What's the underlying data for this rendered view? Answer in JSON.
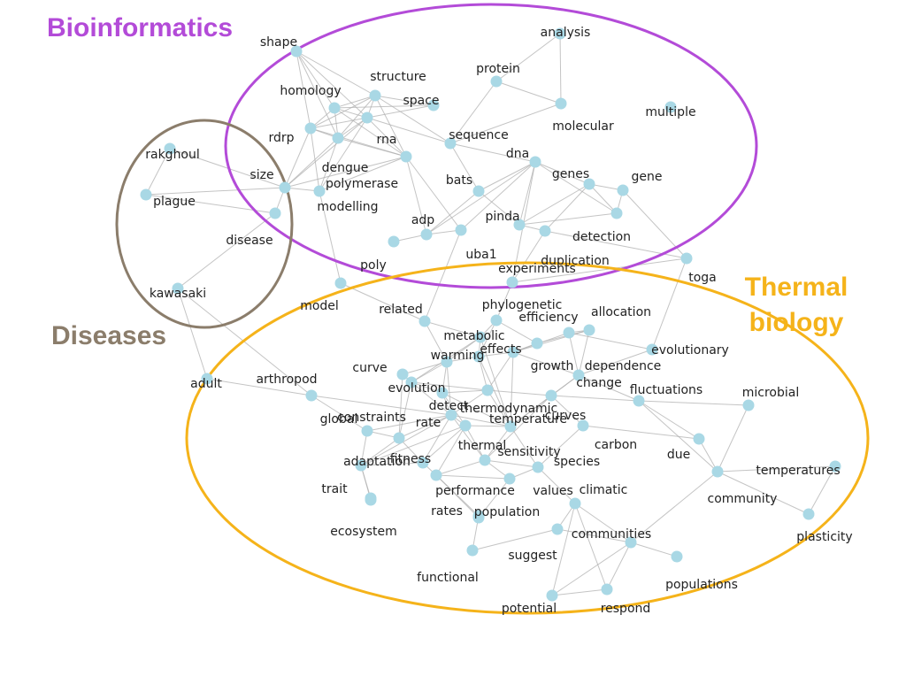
{
  "colors": {
    "node": "#a9d8e5",
    "edge": "#b0b0b0",
    "bioinformatics": "#b34bd8",
    "diseases": "#8b7d6b",
    "thermal_biology": "#f5b31a"
  },
  "clusters": [
    {
      "id": "bioinformatics",
      "label_lines": [
        "Bioinformatics"
      ],
      "color": "#b34bd8"
    },
    {
      "id": "diseases",
      "label_lines": [
        "Diseases"
      ],
      "color": "#8b7d6b"
    },
    {
      "id": "thermal_biology",
      "label_lines": [
        "Thermal",
        "biology"
      ],
      "color": "#f5b31a"
    }
  ],
  "nodes": [
    {
      "id": "shape",
      "label": "shape"
    },
    {
      "id": "analysis",
      "label": "analysis"
    },
    {
      "id": "protein",
      "label": "protein"
    },
    {
      "id": "structure",
      "label": "structure"
    },
    {
      "id": "homology",
      "label": "homology"
    },
    {
      "id": "space",
      "label": "space"
    },
    {
      "id": "multiple",
      "label": "multiple"
    },
    {
      "id": "molecular",
      "label": "molecular"
    },
    {
      "id": "rdrp",
      "label": "rdrp"
    },
    {
      "id": "rna",
      "label": "rna"
    },
    {
      "id": "sequence",
      "label": "sequence"
    },
    {
      "id": "dna",
      "label": "dna"
    },
    {
      "id": "dengue",
      "label": "dengue"
    },
    {
      "id": "rakghoul",
      "label": "rakghoul"
    },
    {
      "id": "size",
      "label": "size"
    },
    {
      "id": "polymerase",
      "label": "polymerase"
    },
    {
      "id": "bats",
      "label": "bats"
    },
    {
      "id": "genes",
      "label": "genes"
    },
    {
      "id": "gene",
      "label": "gene"
    },
    {
      "id": "plague",
      "label": "plague"
    },
    {
      "id": "modelling",
      "label": "modelling"
    },
    {
      "id": "pinda",
      "label": "pinda"
    },
    {
      "id": "adp",
      "label": "adp"
    },
    {
      "id": "disease",
      "label": "disease"
    },
    {
      "id": "detection",
      "label": "detection"
    },
    {
      "id": "uba1",
      "label": "uba1"
    },
    {
      "id": "duplication",
      "label": "duplication"
    },
    {
      "id": "poly",
      "label": "poly"
    },
    {
      "id": "experiments",
      "label": "experiments"
    },
    {
      "id": "toga",
      "label": "toga"
    },
    {
      "id": "kawasaki",
      "label": "kawasaki"
    },
    {
      "id": "phylogenetic",
      "label": "phylogenetic"
    },
    {
      "id": "model",
      "label": "model"
    },
    {
      "id": "related",
      "label": "related"
    },
    {
      "id": "efficiency",
      "label": "efficiency"
    },
    {
      "id": "allocation",
      "label": "allocation"
    },
    {
      "id": "metabolic",
      "label": "metabolic"
    },
    {
      "id": "effects",
      "label": "effects"
    },
    {
      "id": "warming",
      "label": "warming"
    },
    {
      "id": "evolutionary",
      "label": "evolutionary"
    },
    {
      "id": "curve",
      "label": "curve"
    },
    {
      "id": "growth",
      "label": "growth"
    },
    {
      "id": "dependence",
      "label": "dependence"
    },
    {
      "id": "adult",
      "label": "adult"
    },
    {
      "id": "arthropod",
      "label": "arthropod"
    },
    {
      "id": "evolution",
      "label": "evolution"
    },
    {
      "id": "change",
      "label": "change"
    },
    {
      "id": "fluctuations",
      "label": "fluctuations"
    },
    {
      "id": "detect",
      "label": "detect"
    },
    {
      "id": "microbial",
      "label": "microbial"
    },
    {
      "id": "thermodynamic",
      "label": "thermodynamic"
    },
    {
      "id": "global",
      "label": "global"
    },
    {
      "id": "constraints",
      "label": "constraints"
    },
    {
      "id": "rate",
      "label": "rate"
    },
    {
      "id": "temperature",
      "label": "temperature"
    },
    {
      "id": "curves",
      "label": "curves"
    },
    {
      "id": "carbon",
      "label": "carbon"
    },
    {
      "id": "thermal",
      "label": "thermal"
    },
    {
      "id": "sensitivity",
      "label": "sensitivity"
    },
    {
      "id": "due",
      "label": "due"
    },
    {
      "id": "fitness",
      "label": "fitness"
    },
    {
      "id": "adaptation",
      "label": "adaptation"
    },
    {
      "id": "species",
      "label": "species"
    },
    {
      "id": "temperatures",
      "label": "temperatures"
    },
    {
      "id": "trait",
      "label": "trait"
    },
    {
      "id": "performance",
      "label": "performance"
    },
    {
      "id": "values",
      "label": "values"
    },
    {
      "id": "climatic",
      "label": "climatic"
    },
    {
      "id": "community",
      "label": "community"
    },
    {
      "id": "rates",
      "label": "rates"
    },
    {
      "id": "population",
      "label": "population"
    },
    {
      "id": "ecosystem",
      "label": "ecosystem"
    },
    {
      "id": "communities",
      "label": "communities"
    },
    {
      "id": "plasticity",
      "label": "plasticity"
    },
    {
      "id": "suggest",
      "label": "suggest"
    },
    {
      "id": "populations",
      "label": "populations"
    },
    {
      "id": "functional",
      "label": "functional"
    },
    {
      "id": "potential",
      "label": "potential"
    },
    {
      "id": "respond",
      "label": "respond"
    }
  ],
  "edges": [
    [
      "shape",
      "structure"
    ],
    [
      "shape",
      "homology"
    ],
    [
      "shape",
      "rna"
    ],
    [
      "shape",
      "rdrp"
    ],
    [
      "shape",
      "dengue"
    ],
    [
      "analysis",
      "molecular"
    ],
    [
      "analysis",
      "protein"
    ],
    [
      "protein",
      "sequence"
    ],
    [
      "protein",
      "molecular"
    ],
    [
      "structure",
      "homology"
    ],
    [
      "structure",
      "rna"
    ],
    [
      "structure",
      "rdrp"
    ],
    [
      "structure",
      "dengue"
    ],
    [
      "structure",
      "sequence"
    ],
    [
      "structure",
      "polymerase"
    ],
    [
      "homology",
      "rna"
    ],
    [
      "homology",
      "rdrp"
    ],
    [
      "homology",
      "dengue"
    ],
    [
      "homology",
      "polymerase"
    ],
    [
      "space",
      "rna"
    ],
    [
      "space",
      "homology"
    ],
    [
      "space",
      "structure"
    ],
    [
      "rdrp",
      "rna"
    ],
    [
      "rdrp",
      "dengue"
    ],
    [
      "rdrp",
      "polymerase"
    ],
    [
      "rdrp",
      "modelling"
    ],
    [
      "rdrp",
      "size"
    ],
    [
      "rna",
      "dengue"
    ],
    [
      "rna",
      "polymerase"
    ],
    [
      "rna",
      "sequence"
    ],
    [
      "rna",
      "modelling"
    ],
    [
      "rna",
      "size"
    ],
    [
      "dengue",
      "polymerase"
    ],
    [
      "dengue",
      "modelling"
    ],
    [
      "dengue",
      "size"
    ],
    [
      "sequence",
      "dna"
    ],
    [
      "sequence",
      "bats"
    ],
    [
      "molecular",
      "sequence"
    ],
    [
      "polymerase",
      "modelling"
    ],
    [
      "polymerase",
      "size"
    ],
    [
      "polymerase",
      "adp"
    ],
    [
      "polymerase",
      "uba1"
    ],
    [
      "size",
      "modelling"
    ],
    [
      "size",
      "rakghoul"
    ],
    [
      "size",
      "disease"
    ],
    [
      "size",
      "plague"
    ],
    [
      "rakghoul",
      "plague"
    ],
    [
      "plague",
      "disease"
    ],
    [
      "disease",
      "kawasaki"
    ],
    [
      "kawasaki",
      "adult"
    ],
    [
      "kawasaki",
      "arthropod"
    ],
    [
      "dna",
      "genes"
    ],
    [
      "dna",
      "pinda"
    ],
    [
      "dna",
      "detection"
    ],
    [
      "dna",
      "adp"
    ],
    [
      "dna",
      "uba1"
    ],
    [
      "dna",
      "experiments"
    ],
    [
      "dna",
      "bats"
    ],
    [
      "genes",
      "gene"
    ],
    [
      "genes",
      "detection"
    ],
    [
      "genes",
      "pinda"
    ],
    [
      "gene",
      "detection"
    ],
    [
      "gene",
      "toga"
    ],
    [
      "genes",
      "duplication"
    ],
    [
      "pinda",
      "duplication"
    ],
    [
      "pinda",
      "detection"
    ],
    [
      "bats",
      "adp"
    ],
    [
      "bats",
      "pinda"
    ],
    [
      "adp",
      "uba1"
    ],
    [
      "adp",
      "poly"
    ],
    [
      "duplication",
      "experiments"
    ],
    [
      "experiments",
      "phylogenetic"
    ],
    [
      "toga",
      "experiments"
    ],
    [
      "toga",
      "duplication"
    ],
    [
      "toga",
      "evolutionary"
    ],
    [
      "modelling",
      "model"
    ],
    [
      "model",
      "related"
    ],
    [
      "related",
      "metabolic"
    ],
    [
      "related",
      "warming"
    ],
    [
      "uba1",
      "related"
    ],
    [
      "phylogenetic",
      "efficiency"
    ],
    [
      "phylogenetic",
      "metabolic"
    ],
    [
      "phylogenetic",
      "effects"
    ],
    [
      "efficiency",
      "allocation"
    ],
    [
      "efficiency",
      "growth"
    ],
    [
      "allocation",
      "dependence"
    ],
    [
      "allocation",
      "growth"
    ],
    [
      "allocation",
      "change"
    ],
    [
      "metabolic",
      "warming"
    ],
    [
      "metabolic",
      "effects"
    ],
    [
      "metabolic",
      "evolution"
    ],
    [
      "metabolic",
      "temperature"
    ],
    [
      "effects",
      "growth"
    ],
    [
      "effects",
      "warming"
    ],
    [
      "effects",
      "thermodynamic"
    ],
    [
      "effects",
      "temperature"
    ],
    [
      "warming",
      "evolution"
    ],
    [
      "warming",
      "curve"
    ],
    [
      "warming",
      "detect"
    ],
    [
      "warming",
      "rate"
    ],
    [
      "evolutionary",
      "dependence"
    ],
    [
      "evolutionary",
      "change"
    ],
    [
      "dependence",
      "change"
    ],
    [
      "dependence",
      "growth"
    ],
    [
      "curve",
      "evolution"
    ],
    [
      "curve",
      "constraints"
    ],
    [
      "growth",
      "thermodynamic"
    ],
    [
      "growth",
      "temperature"
    ],
    [
      "growth",
      "change"
    ],
    [
      "arthropod",
      "global"
    ],
    [
      "arthropod",
      "rate"
    ],
    [
      "adult",
      "arthropod"
    ],
    [
      "evolution",
      "detect"
    ],
    [
      "evolution",
      "thermodynamic"
    ],
    [
      "evolution",
      "rate"
    ],
    [
      "evolution",
      "constraints"
    ],
    [
      "change",
      "fluctuations"
    ],
    [
      "change",
      "curves"
    ],
    [
      "change",
      "temperature"
    ],
    [
      "fluctuations",
      "microbial"
    ],
    [
      "fluctuations",
      "due"
    ],
    [
      "fluctuations",
      "community"
    ],
    [
      "fluctuations",
      "curves"
    ],
    [
      "detect",
      "thermodynamic"
    ],
    [
      "detect",
      "rate"
    ],
    [
      "detect",
      "temperature"
    ],
    [
      "detect",
      "thermal"
    ],
    [
      "thermodynamic",
      "temperature"
    ],
    [
      "thermodynamic",
      "rate"
    ],
    [
      "thermodynamic",
      "curves"
    ],
    [
      "global",
      "constraints"
    ],
    [
      "global",
      "adaptation"
    ],
    [
      "global",
      "rate"
    ],
    [
      "constraints",
      "rate"
    ],
    [
      "constraints",
      "adaptation"
    ],
    [
      "constraints",
      "fitness"
    ],
    [
      "rate",
      "temperature"
    ],
    [
      "rate",
      "thermal"
    ],
    [
      "rate",
      "sensitivity"
    ],
    [
      "rate",
      "fitness"
    ],
    [
      "rate",
      "adaptation"
    ],
    [
      "temperature",
      "curves"
    ],
    [
      "temperature",
      "sensitivity"
    ],
    [
      "temperature",
      "thermal"
    ],
    [
      "temperature",
      "species"
    ],
    [
      "curves",
      "carbon"
    ],
    [
      "curves",
      "sensitivity"
    ],
    [
      "carbon",
      "species"
    ],
    [
      "carbon",
      "due"
    ],
    [
      "thermal",
      "sensitivity"
    ],
    [
      "thermal",
      "fitness"
    ],
    [
      "thermal",
      "performance"
    ],
    [
      "thermal",
      "adaptation"
    ],
    [
      "sensitivity",
      "species"
    ],
    [
      "sensitivity",
      "values"
    ],
    [
      "sensitivity",
      "performance"
    ],
    [
      "fitness",
      "adaptation"
    ],
    [
      "fitness",
      "performance"
    ],
    [
      "adaptation",
      "trait"
    ],
    [
      "adaptation",
      "ecosystem"
    ],
    [
      "species",
      "climatic"
    ],
    [
      "species",
      "values"
    ],
    [
      "performance",
      "rates"
    ],
    [
      "performance",
      "population"
    ],
    [
      "performance",
      "values"
    ],
    [
      "trait",
      "ecosystem"
    ],
    [
      "microbial",
      "community"
    ],
    [
      "due",
      "community"
    ],
    [
      "community",
      "temperatures"
    ],
    [
      "community",
      "plasticity"
    ],
    [
      "temperatures",
      "plasticity"
    ],
    [
      "climatic",
      "communities"
    ],
    [
      "climatic",
      "suggest"
    ],
    [
      "climatic",
      "potential"
    ],
    [
      "climatic",
      "respond"
    ],
    [
      "communities",
      "suggest"
    ],
    [
      "communities",
      "populations"
    ],
    [
      "communities",
      "potential"
    ],
    [
      "communities",
      "respond"
    ],
    [
      "communities",
      "community"
    ],
    [
      "suggest",
      "functional"
    ],
    [
      "functional",
      "rates"
    ],
    [
      "potential",
      "respond"
    ],
    [
      "values",
      "population"
    ]
  ]
}
